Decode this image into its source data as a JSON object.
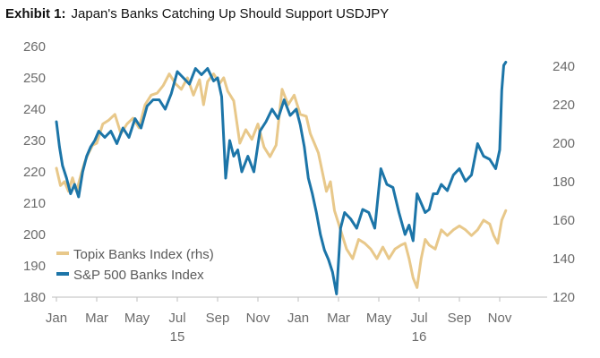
{
  "header": {
    "exhibit_label": "Exhibit 1:",
    "title": "Japan's Banks Catching Up Should Support USDJPY"
  },
  "colors": {
    "topix": "#E8C88A",
    "sp500": "#1C75A8",
    "axis": "#bdbdbd",
    "text": "#6b6b6b"
  },
  "chart_data": {
    "type": "line",
    "title": "Japan's Banks Catching Up Should Support USDJPY",
    "x_tick_labels": [
      "Jan",
      "Mar",
      "May",
      "Jul",
      "Sep",
      "Nov",
      "Jan",
      "Mar",
      "May",
      "Jul",
      "Sep",
      "Nov"
    ],
    "x_year_labels": [
      {
        "label": "15",
        "month_index": 6
      },
      {
        "label": "16",
        "month_index": 18
      }
    ],
    "x_range_months": [
      0,
      22.5
    ],
    "left_axis": {
      "ticks": [
        "180",
        "190",
        "200",
        "210",
        "220",
        "230",
        "240",
        "250",
        "260"
      ],
      "ylim": [
        180,
        260
      ]
    },
    "right_axis": {
      "ticks": [
        "120",
        "140",
        "160",
        "180",
        "200",
        "220",
        "240"
      ],
      "ylim": [
        120,
        245
      ]
    },
    "legend_position": "lower-left",
    "grid": false,
    "series": [
      {
        "name": "Topix Banks Index (rhs)",
        "axis": "right",
        "color": "#E8C88A",
        "x": [
          0,
          0.2,
          0.4,
          0.6,
          0.8,
          1.0,
          1.2,
          1.4,
          1.6,
          1.8,
          2.0,
          2.3,
          2.6,
          2.9,
          3.2,
          3.5,
          3.8,
          4.1,
          4.4,
          4.7,
          5.0,
          5.3,
          5.6,
          5.9,
          6.2,
          6.5,
          6.8,
          7.1,
          7.3,
          7.5,
          7.8,
          8.1,
          8.3,
          8.5,
          8.8,
          9.1,
          9.4,
          9.7,
          10.0,
          10.3,
          10.6,
          10.9,
          11.2,
          11.5,
          11.8,
          12.1,
          12.4,
          12.6,
          12.8,
          13.0,
          13.2,
          13.4,
          13.6,
          13.8,
          14.1,
          14.4,
          14.7,
          15.0,
          15.3,
          15.6,
          15.9,
          16.2,
          16.5,
          16.8,
          17.1,
          17.3,
          17.5,
          17.7,
          17.9,
          18.1,
          18.3,
          18.5,
          18.8,
          19.1,
          19.4,
          19.7,
          20.0,
          20.3,
          20.6,
          20.9,
          21.2,
          21.5,
          21.7,
          21.9,
          22.1,
          22.3
        ],
        "y": [
          187,
          178,
          180,
          175,
          182,
          175,
          183,
          190,
          195,
          199,
          200,
          210,
          212,
          215,
          205,
          210,
          213,
          208,
          220,
          225,
          226,
          230,
          236,
          231,
          228,
          234,
          225,
          233,
          220,
          232,
          236,
          231,
          234,
          227,
          222,
          200,
          207,
          202,
          210,
          198,
          193,
          199,
          228,
          220,
          225,
          215,
          214,
          205,
          200,
          195,
          185,
          175,
          180,
          165,
          155,
          145,
          140,
          150,
          148,
          145,
          140,
          146,
          140,
          145,
          147,
          148,
          140,
          130,
          125,
          140,
          150,
          147,
          145,
          155,
          152,
          155,
          157,
          155,
          152,
          155,
          160,
          158,
          152,
          148,
          160,
          165
        ]
      },
      {
        "name": "S&P 500 Banks Index",
        "axis": "left",
        "color": "#1C75A8",
        "x": [
          0,
          0.15,
          0.3,
          0.5,
          0.7,
          0.9,
          1.1,
          1.3,
          1.5,
          1.7,
          1.9,
          2.1,
          2.4,
          2.7,
          3.0,
          3.3,
          3.6,
          3.9,
          4.2,
          4.5,
          4.8,
          5.1,
          5.4,
          5.7,
          6.0,
          6.3,
          6.6,
          6.9,
          7.2,
          7.5,
          7.8,
          8.0,
          8.2,
          8.4,
          8.6,
          8.8,
          9.0,
          9.2,
          9.5,
          9.8,
          10.1,
          10.4,
          10.7,
          11.0,
          11.3,
          11.6,
          11.9,
          12.1,
          12.3,
          12.5,
          12.7,
          12.9,
          13.1,
          13.3,
          13.5,
          13.7,
          13.9,
          14.1,
          14.3,
          14.6,
          14.9,
          15.2,
          15.5,
          15.8,
          16.1,
          16.4,
          16.7,
          17.0,
          17.3,
          17.5,
          17.7,
          17.9,
          18.1,
          18.3,
          18.5,
          18.7,
          18.9,
          19.1,
          19.4,
          19.7,
          20.0,
          20.3,
          20.6,
          20.9,
          21.2,
          21.5,
          21.8,
          22.0,
          22.1,
          22.2,
          22.3
        ],
        "y": [
          236,
          228,
          222,
          218,
          213,
          216,
          212,
          220,
          225,
          228,
          230,
          233,
          231,
          233,
          229,
          234,
          231,
          237,
          234,
          241,
          243,
          243,
          240,
          245,
          252,
          250,
          248,
          253,
          251,
          253,
          249,
          250,
          244,
          218,
          230,
          225,
          227,
          220,
          225,
          220,
          233,
          236,
          240,
          237,
          243,
          238,
          240,
          235,
          228,
          218,
          213,
          207,
          200,
          195,
          192,
          188,
          181,
          202,
          207,
          205,
          202,
          208,
          207,
          202,
          221,
          216,
          215,
          207,
          200,
          203,
          198,
          213,
          210,
          207,
          208,
          213,
          213,
          216,
          214,
          219,
          221,
          217,
          219,
          229,
          225,
          224,
          221,
          227,
          246,
          254,
          255
        ]
      }
    ]
  }
}
